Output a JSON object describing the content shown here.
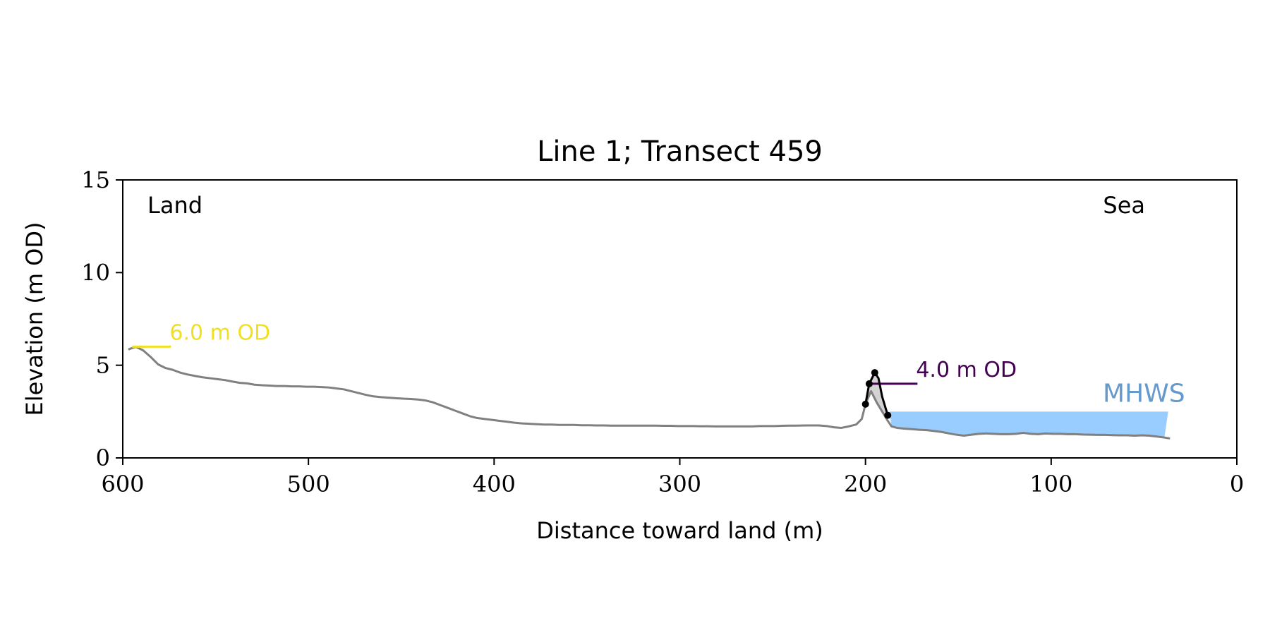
{
  "chart_data": {
    "type": "line",
    "title": "Line 1; Transect 459",
    "xlabel": "Distance toward land (m)",
    "ylabel": "Elevation (m OD)",
    "xlim": [
      600,
      0
    ],
    "ylim": [
      0,
      15
    ],
    "xticks": [
      600,
      500,
      400,
      300,
      200,
      100,
      0
    ],
    "yticks": [
      0,
      5,
      10,
      15
    ],
    "grid": false,
    "land_label": "Land",
    "sea_label": "Sea",
    "colors": {
      "profile": "#808080",
      "dune": "#000000",
      "dune_fill": "#d3d3d3",
      "mhws_fill": "#99ccff",
      "mhws_text": "#6699cc",
      "contour_high": "#f0e020",
      "contour_low": "#440154"
    },
    "series": [
      {
        "role": "profile",
        "x": [
          597,
          593,
          589,
          585,
          581,
          577,
          573,
          569,
          565,
          561,
          557,
          553,
          549,
          545,
          541,
          537,
          533,
          529,
          525,
          521,
          517,
          513,
          509,
          505,
          501,
          497,
          493,
          489,
          485,
          481,
          477,
          473,
          469,
          465,
          461,
          457,
          453,
          449,
          445,
          441,
          437,
          433,
          429,
          425,
          421,
          417,
          413,
          409,
          405,
          401,
          397,
          393,
          389,
          385,
          381,
          377,
          373,
          369,
          365,
          361,
          357,
          353,
          349,
          345,
          341,
          337,
          333,
          329,
          325,
          321,
          317,
          313,
          309,
          305,
          301,
          297,
          293,
          289,
          285,
          281,
          277,
          273,
          269,
          265,
          261,
          257,
          253,
          249,
          245,
          241,
          237,
          233,
          229,
          225,
          221,
          217,
          213,
          209,
          205,
          202,
          200,
          197,
          194,
          191,
          188,
          186,
          183,
          179,
          175,
          171,
          167,
          163,
          159,
          155,
          151,
          147,
          143,
          139,
          135,
          131,
          127,
          123,
          119,
          115,
          111,
          107,
          103,
          99,
          95,
          91,
          87,
          83,
          79,
          75,
          71,
          67,
          63,
          59,
          55,
          51,
          47,
          43,
          39,
          36
        ],
        "y": [
          5.85,
          6.0,
          5.8,
          5.45,
          5.05,
          4.85,
          4.75,
          4.6,
          4.5,
          4.42,
          4.35,
          4.3,
          4.25,
          4.2,
          4.12,
          4.05,
          4.02,
          3.95,
          3.92,
          3.9,
          3.88,
          3.88,
          3.86,
          3.86,
          3.84,
          3.84,
          3.82,
          3.8,
          3.75,
          3.7,
          3.6,
          3.5,
          3.4,
          3.32,
          3.28,
          3.25,
          3.22,
          3.2,
          3.18,
          3.15,
          3.1,
          3.0,
          2.85,
          2.7,
          2.55,
          2.4,
          2.25,
          2.15,
          2.1,
          2.05,
          2.0,
          1.95,
          1.9,
          1.86,
          1.84,
          1.82,
          1.8,
          1.8,
          1.78,
          1.78,
          1.78,
          1.76,
          1.76,
          1.75,
          1.75,
          1.74,
          1.74,
          1.74,
          1.74,
          1.74,
          1.74,
          1.74,
          1.73,
          1.73,
          1.72,
          1.72,
          1.72,
          1.71,
          1.71,
          1.7,
          1.7,
          1.7,
          1.7,
          1.7,
          1.7,
          1.72,
          1.72,
          1.72,
          1.73,
          1.74,
          1.74,
          1.75,
          1.75,
          1.75,
          1.72,
          1.65,
          1.62,
          1.7,
          1.8,
          2.1,
          2.9,
          3.6,
          3.0,
          2.5,
          2.0,
          1.7,
          1.62,
          1.58,
          1.55,
          1.52,
          1.5,
          1.45,
          1.4,
          1.32,
          1.25,
          1.2,
          1.25,
          1.3,
          1.32,
          1.3,
          1.28,
          1.28,
          1.3,
          1.35,
          1.3,
          1.28,
          1.32,
          1.3,
          1.3,
          1.28,
          1.28,
          1.26,
          1.25,
          1.24,
          1.24,
          1.23,
          1.22,
          1.22,
          1.2,
          1.22,
          1.2,
          1.15,
          1.1,
          1.05
        ]
      },
      {
        "role": "dune",
        "x": [
          200,
          198,
          195,
          193,
          191,
          188
        ],
        "y": [
          2.9,
          4.0,
          4.6,
          4.3,
          3.3,
          2.3
        ]
      }
    ],
    "dune_points": [
      {
        "x": 200,
        "y": 2.9
      },
      {
        "x": 198,
        "y": 4.0
      },
      {
        "x": 195,
        "y": 4.6
      },
      {
        "x": 188,
        "y": 2.3
      }
    ],
    "mhws": {
      "label": "MHWS",
      "level": 2.5,
      "x_from": 187,
      "x_to": 37
    },
    "contours": [
      {
        "label": "6.0 m OD",
        "value": 6.0,
        "x_from": 595,
        "x_to": 574,
        "color": "#f0e020"
      },
      {
        "label": "4.0 m OD",
        "value": 4.0,
        "x_from": 197,
        "x_to": 172,
        "color": "#440154"
      }
    ]
  }
}
